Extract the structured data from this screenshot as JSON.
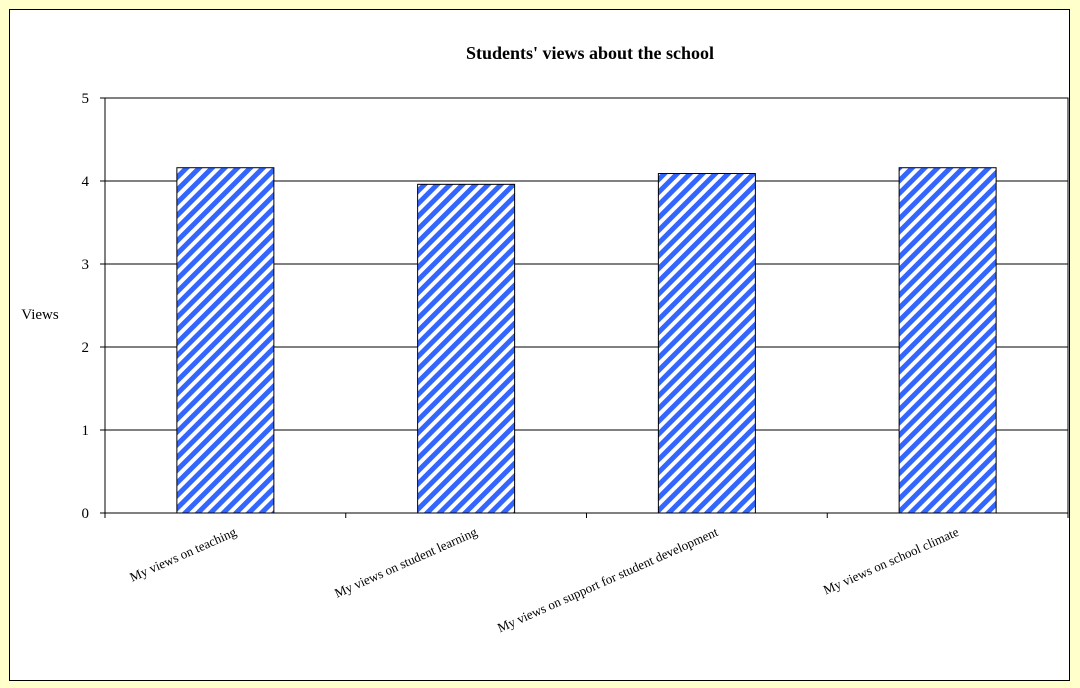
{
  "chart_data": {
    "type": "bar",
    "title": "Students' views about the school",
    "ylabel": "Views",
    "xlabel": "",
    "categories": [
      "My views on teaching",
      "My views on student learning",
      "My views on support for student development",
      "My views on school climate"
    ],
    "values": [
      4.16,
      3.96,
      4.09,
      4.16
    ],
    "ylim": [
      0,
      5
    ],
    "yticks": [
      "0",
      "1",
      "2",
      "3",
      "4",
      "5"
    ],
    "grid": true,
    "legend": "none",
    "colors": {
      "bar_stripe": "#3366ff",
      "bar_base": "#ffffff",
      "frame_background": "#ffffcc",
      "plot_background": "#ffffff"
    }
  }
}
